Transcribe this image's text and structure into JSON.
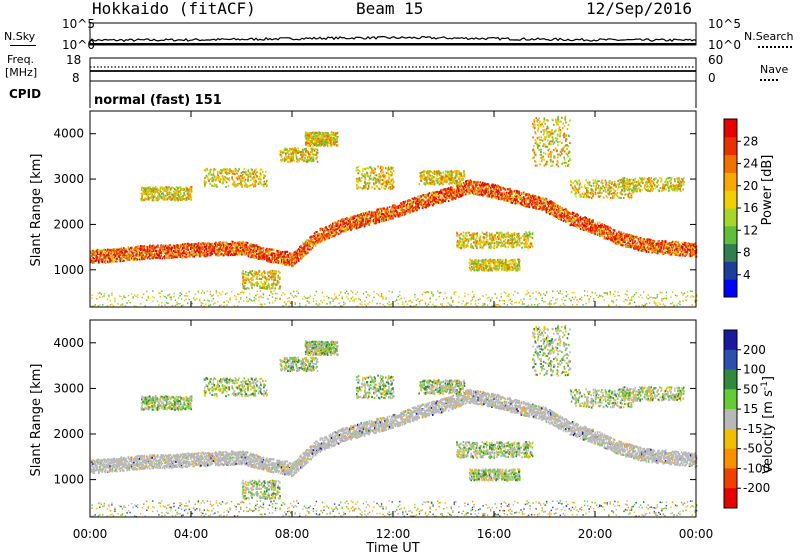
{
  "header": {
    "station": "Hokkaido (fitACF)",
    "beam": "Beam 15",
    "date": "12/Sep/2016"
  },
  "top_panels": {
    "nsky_label": "N.Sky",
    "nsearch_label": "N.Search",
    "nsky_ticks": [
      "10^5",
      "10^0"
    ],
    "nsky_right_ticks": [
      "10^5",
      "10^0"
    ],
    "freq_label_line1": "Freq.",
    "freq_label_line2": "[MHz]",
    "freq_ticks": [
      "18",
      "8"
    ],
    "nave_label": "Nave",
    "nave_ticks": [
      "60",
      "0"
    ],
    "cpid_label": "CPID",
    "cpid_text": "normal (fast) 151"
  },
  "chart_data": [
    {
      "type": "heatmap",
      "name": "power",
      "ylabel": "Slant Range [km]",
      "yticks": [
        "4000",
        "3000",
        "2000",
        "1000"
      ],
      "ytick_values": [
        4000,
        3000,
        2000,
        1000
      ],
      "ylim": [
        180,
        4500
      ],
      "x_ticks": [
        "00:00",
        "04:00",
        "08:00",
        "12:00",
        "16:00",
        "20:00",
        "00:00"
      ],
      "x_tick_hours": [
        0,
        4,
        8,
        12,
        16,
        20,
        24
      ],
      "xlim": [
        0,
        24
      ],
      "colorbar": {
        "label": "Power [dB]",
        "ticks": [
          "28",
          "24",
          "20",
          "16",
          "12",
          "8",
          "4"
        ],
        "tick_values": [
          28,
          24,
          20,
          16,
          12,
          8,
          4
        ],
        "range": [
          0,
          32
        ],
        "colors": [
          "#0000ff",
          "#1c3d9c",
          "#2f7f4f",
          "#5fbf3a",
          "#a8d52a",
          "#f0d000",
          "#f8a800",
          "#f07000",
          "#e83000",
          "#e80000"
        ]
      },
      "main_band": {
        "hours": [
          0,
          1,
          2,
          3,
          4,
          5,
          6,
          7,
          8,
          9,
          10,
          11,
          12,
          13,
          14,
          15,
          16,
          17,
          18,
          19,
          20,
          21,
          22,
          23,
          24
        ],
        "range_km": [
          1300,
          1350,
          1400,
          1420,
          1450,
          1480,
          1500,
          1350,
          1250,
          1750,
          2000,
          2150,
          2300,
          2500,
          2650,
          2850,
          2750,
          2600,
          2450,
          2150,
          1950,
          1700,
          1550,
          1500,
          1450
        ]
      }
    },
    {
      "type": "heatmap",
      "name": "velocity",
      "ylabel": "Slant Range [km]",
      "yticks": [
        "4000",
        "3000",
        "2000",
        "1000"
      ],
      "ytick_values": [
        4000,
        3000,
        2000,
        1000
      ],
      "ylim": [
        180,
        4500
      ],
      "x_ticks": [
        "00:00",
        "04:00",
        "08:00",
        "12:00",
        "16:00",
        "20:00",
        "00:00"
      ],
      "x_tick_hours": [
        0,
        4,
        8,
        12,
        16,
        20,
        24
      ],
      "xlim": [
        0,
        24
      ],
      "xlabel": "Time UT",
      "colorbar": {
        "label": "Velocity [m s",
        "label_sup": "-1",
        "label_end": "]",
        "ticks": [
          "200",
          "100",
          "50",
          "15",
          "-15",
          "-50",
          "-100",
          "-200"
        ],
        "colors": [
          "#1a1aa0",
          "#2a4fb0",
          "#2f8a3c",
          "#66cc33",
          "#b8b8b8",
          "#f0c000",
          "#f89000",
          "#f04000",
          "#e80000"
        ]
      }
    }
  ]
}
